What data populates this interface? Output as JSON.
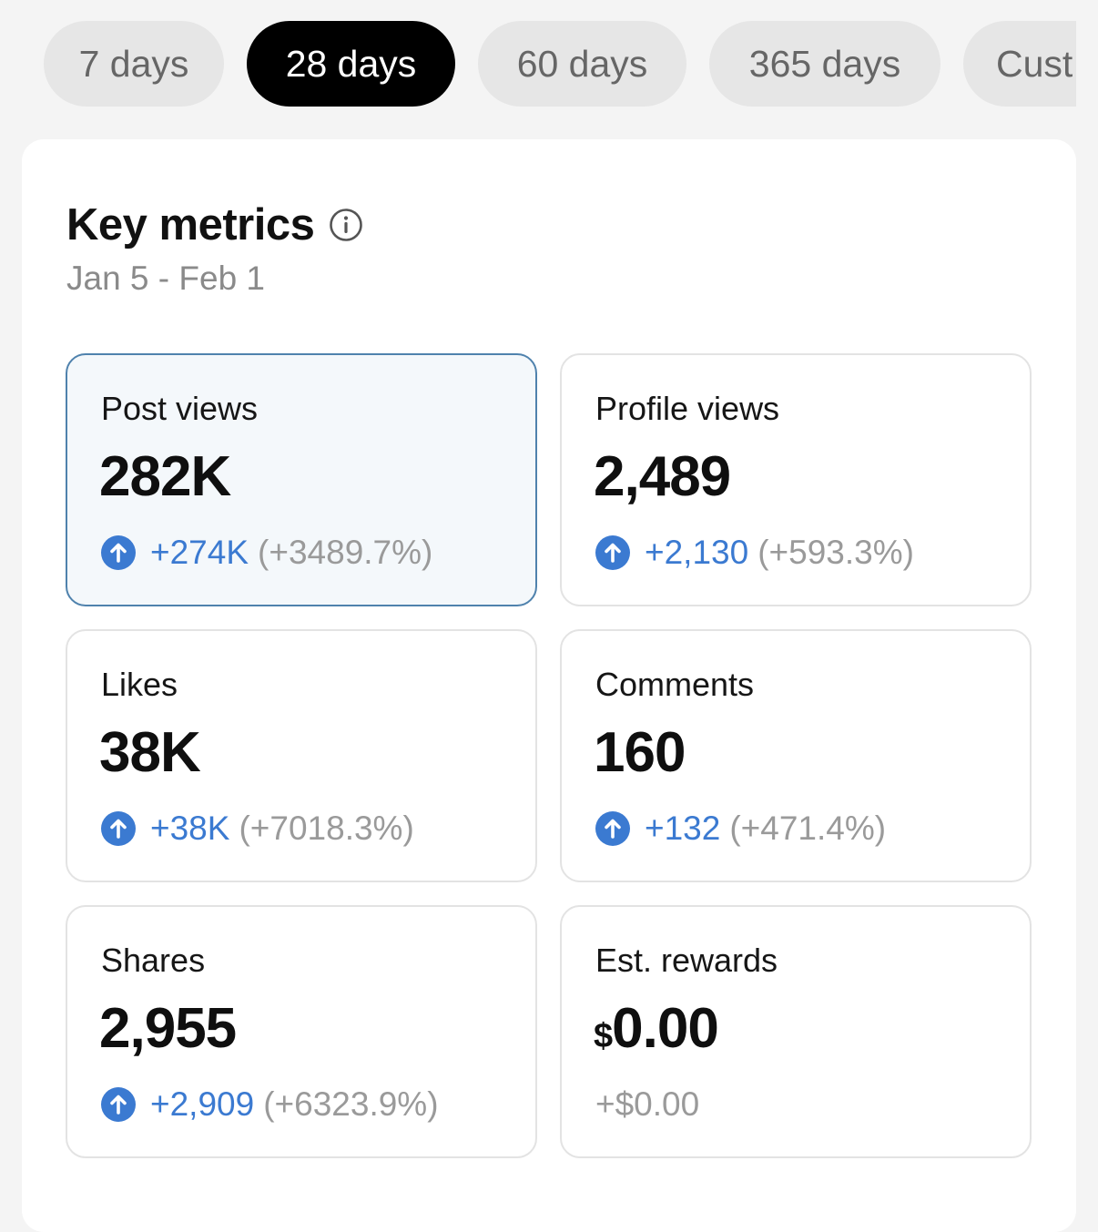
{
  "tabs": [
    {
      "label": "7 days"
    },
    {
      "label": "28 days"
    },
    {
      "label": "60 days"
    },
    {
      "label": "365 days"
    },
    {
      "label": "Cust"
    }
  ],
  "active_tab": "28 days",
  "key_metrics": {
    "title": "Key metrics",
    "date_range": "Jan 5 - Feb 1",
    "metrics": [
      {
        "label": "Post views",
        "value": "282K",
        "change": "+274K",
        "change_pct": "(+3489.7%)",
        "trend": "up"
      },
      {
        "label": "Profile views",
        "value": "2,489",
        "change": "+2,130",
        "change_pct": "(+593.3%)",
        "trend": "up"
      },
      {
        "label": "Likes",
        "value": "38K",
        "change": "+38K",
        "change_pct": "(+7018.3%)",
        "trend": "up"
      },
      {
        "label": "Comments",
        "value": "160",
        "change": "+132",
        "change_pct": "(+471.4%)",
        "trend": "up"
      },
      {
        "label": "Shares",
        "value": "2,955",
        "change": "+2,909",
        "change_pct": "(+6323.9%)",
        "trend": "up"
      },
      {
        "label": "Est. rewards",
        "currency": "$",
        "value": "0.00",
        "change": "+$0.00"
      }
    ]
  },
  "colors": {
    "accent_blue": "#3b7ad1",
    "selected_border": "#4f82ad",
    "active_tab": "#000000"
  },
  "icons": {
    "info": "info-icon",
    "trend_up": "arrow-up-circle-icon"
  }
}
